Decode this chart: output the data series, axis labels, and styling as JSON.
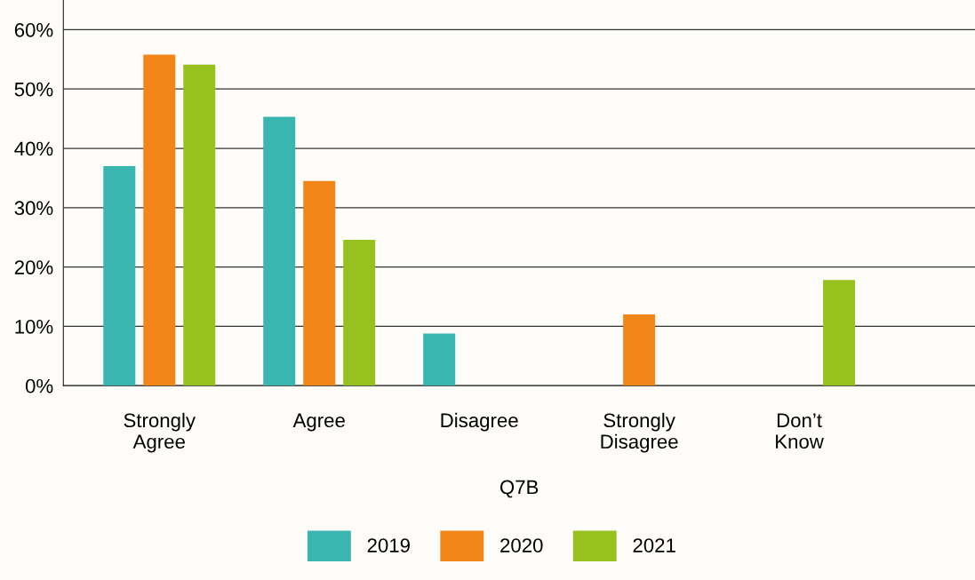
{
  "chart_data": {
    "type": "bar",
    "xlabel": "Q7B",
    "categories": [
      "Strongly\nAgree",
      "Agree",
      "Disagree",
      "Strongly\nDisagree",
      "Don’t\nKnow"
    ],
    "series": [
      {
        "name": "2019",
        "color": "#3ab5b0",
        "values": [
          37.0,
          45.3,
          8.8,
          null,
          null
        ]
      },
      {
        "name": "2020",
        "color": "#f28518",
        "values": [
          55.8,
          34.5,
          null,
          12.0,
          null
        ]
      },
      {
        "name": "2021",
        "color": "#97c11f",
        "values": [
          54.1,
          24.6,
          null,
          null,
          17.8
        ]
      }
    ],
    "ylim": [
      0,
      65
    ],
    "yticks": [
      {
        "value": 0,
        "label": "0%"
      },
      {
        "value": 10,
        "label": "10%"
      },
      {
        "value": 20,
        "label": "20%"
      },
      {
        "value": 30,
        "label": "30%"
      },
      {
        "value": 40,
        "label": "40%"
      },
      {
        "value": 50,
        "label": "50%"
      },
      {
        "value": 60,
        "label": "60%"
      }
    ],
    "grid": "y",
    "legend": "bottom"
  }
}
